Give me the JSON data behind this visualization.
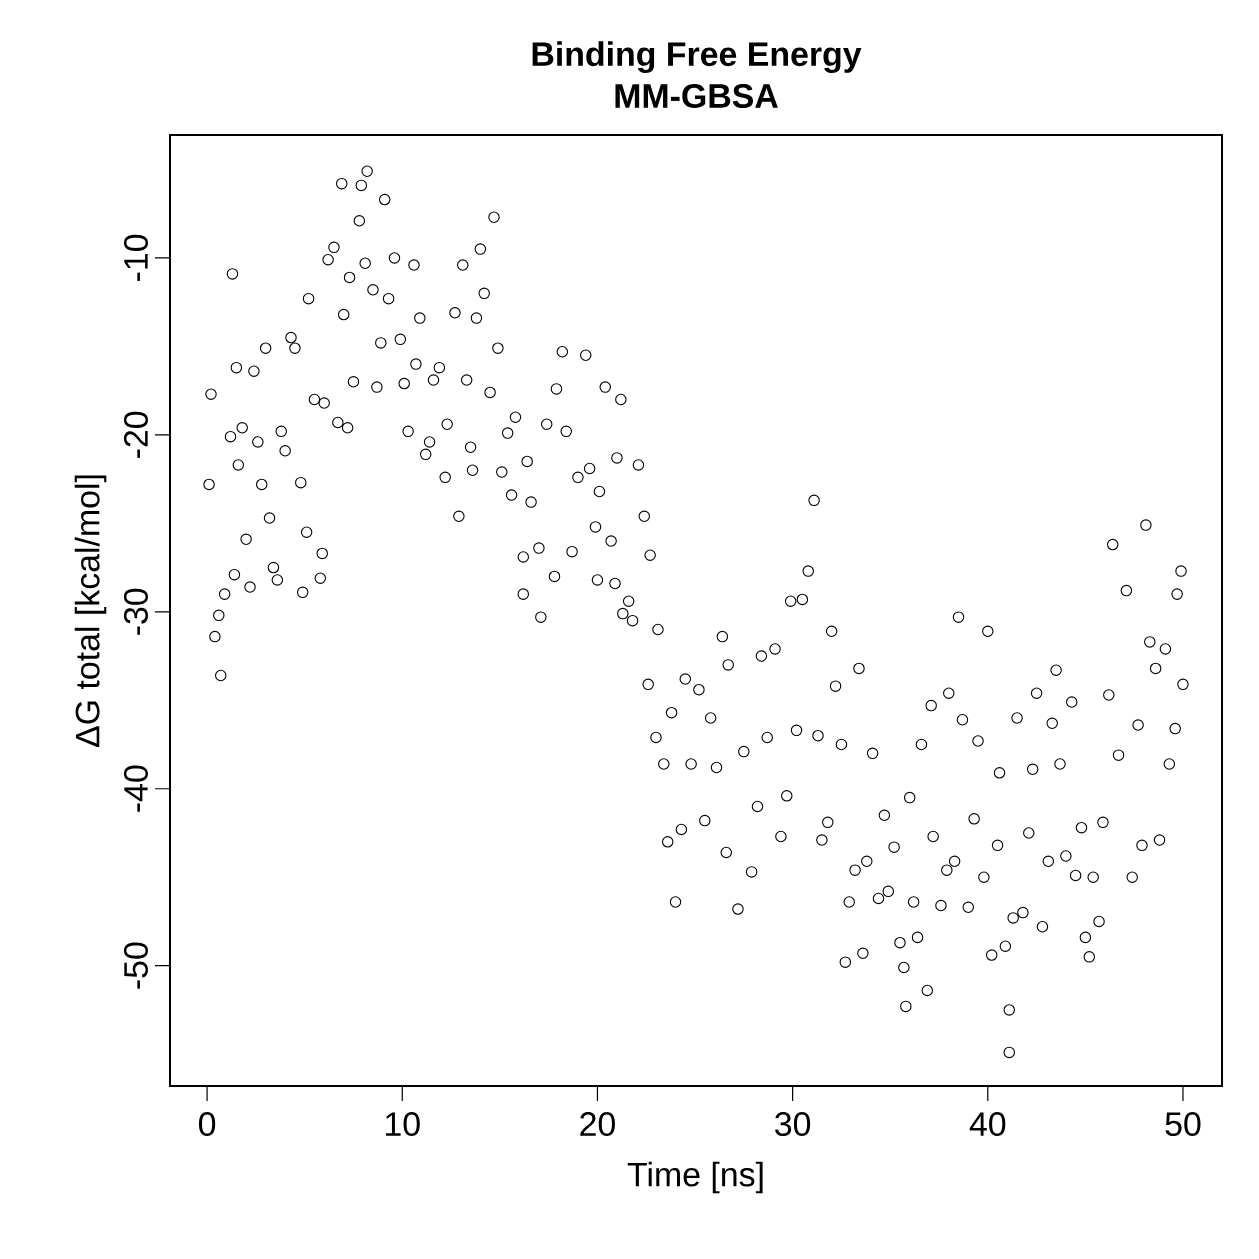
{
  "chart_data": {
    "type": "scatter",
    "title": "Binding Free Energy",
    "subtitle": "MM-GBSA",
    "xlabel": "Time [ns]",
    "ylabel": "ΔG total [kcal/mol]",
    "x": [
      0.1,
      0.2,
      0.4,
      0.7,
      0.6,
      0.9,
      1.2,
      1.3,
      1.5,
      1.6,
      1.4,
      1.8,
      2.0,
      2.2,
      2.4,
      2.6,
      2.8,
      3.0,
      3.2,
      3.4,
      3.6,
      3.8,
      4.0,
      4.3,
      4.5,
      4.8,
      4.9,
      5.1,
      5.2,
      5.5,
      5.8,
      5.9,
      6.0,
      6.2,
      6.5,
      6.7,
      6.9,
      7.0,
      7.2,
      7.3,
      7.5,
      7.8,
      7.9,
      8.2,
      8.1,
      8.5,
      8.7,
      8.9,
      9.1,
      9.3,
      9.6,
      9.9,
      10.1,
      10.3,
      10.6,
      10.7,
      10.9,
      11.2,
      11.4,
      11.6,
      11.9,
      12.2,
      12.3,
      12.7,
      12.9,
      13.1,
      13.3,
      13.5,
      13.6,
      13.8,
      14.0,
      14.2,
      14.5,
      14.7,
      14.9,
      15.1,
      15.4,
      15.6,
      15.8,
      16.2,
      16.2,
      16.4,
      16.6,
      17.0,
      17.1,
      17.4,
      17.8,
      17.9,
      18.2,
      18.4,
      18.7,
      19.0,
      19.4,
      19.6,
      19.9,
      20.0,
      20.1,
      20.4,
      20.7,
      20.9,
      21.0,
      21.2,
      21.3,
      21.6,
      21.8,
      22.1,
      22.4,
      22.6,
      22.7,
      23.0,
      23.1,
      23.4,
      23.6,
      23.8,
      24.0,
      24.3,
      24.5,
      24.8,
      25.2,
      25.5,
      25.8,
      26.1,
      26.4,
      26.6,
      26.7,
      27.2,
      27.5,
      27.9,
      28.2,
      28.4,
      28.7,
      29.1,
      29.4,
      29.7,
      29.9,
      30.2,
      30.5,
      30.8,
      31.1,
      31.3,
      31.5,
      31.8,
      32.0,
      32.2,
      32.5,
      32.7,
      32.9,
      33.2,
      33.4,
      33.6,
      33.8,
      34.1,
      34.4,
      34.7,
      34.9,
      35.2,
      35.5,
      35.7,
      35.8,
      36.0,
      36.2,
      36.4,
      36.6,
      36.9,
      37.1,
      37.2,
      37.6,
      37.9,
      38.0,
      38.3,
      38.5,
      38.7,
      39.0,
      39.3,
      39.5,
      39.8,
      40.0,
      40.2,
      40.5,
      40.6,
      40.9,
      41.1,
      41.1,
      41.3,
      41.5,
      41.8,
      42.1,
      42.3,
      42.5,
      42.8,
      43.1,
      43.3,
      43.5,
      43.7,
      44.0,
      44.3,
      44.5,
      44.8,
      45.0,
      45.2,
      45.4,
      45.7,
      45.9,
      46.2,
      46.4,
      46.7,
      47.1,
      47.4,
      47.7,
      47.9,
      48.1,
      48.3,
      48.6,
      48.8,
      49.1,
      49.3,
      49.6,
      49.7,
      49.9,
      50.0
    ],
    "values": [
      -22.8,
      -17.7,
      -31.4,
      -33.6,
      -30.2,
      -29.0,
      -20.1,
      -10.9,
      -16.2,
      -21.7,
      -27.9,
      -19.6,
      -25.9,
      -28.6,
      -16.4,
      -20.4,
      -22.8,
      -15.1,
      -24.7,
      -27.5,
      -28.2,
      -19.8,
      -20.9,
      -14.5,
      -15.1,
      -22.7,
      -28.9,
      -25.5,
      -12.3,
      -18.0,
      -28.1,
      -26.7,
      -18.2,
      -10.1,
      -9.4,
      -19.3,
      -5.8,
      -13.2,
      -19.6,
      -11.1,
      -17.0,
      -7.9,
      -5.9,
      -5.1,
      -10.3,
      -11.8,
      -17.3,
      -14.8,
      -6.7,
      -12.3,
      -10.0,
      -14.6,
      -17.1,
      -19.8,
      -10.4,
      -16.0,
      -13.4,
      -21.1,
      -20.4,
      -16.9,
      -16.2,
      -22.4,
      -19.4,
      -13.1,
      -24.6,
      -10.4,
      -16.9,
      -20.7,
      -22.0,
      -13.4,
      -9.5,
      -12.0,
      -17.6,
      -7.7,
      -15.1,
      -22.1,
      -19.9,
      -23.4,
      -19.0,
      -26.9,
      -29.0,
      -21.5,
      -23.8,
      -26.4,
      -30.3,
      -19.4,
      -28.0,
      -17.4,
      -15.3,
      -19.8,
      -26.6,
      -22.4,
      -15.5,
      -21.9,
      -25.2,
      -28.2,
      -23.2,
      -17.3,
      -26.0,
      -28.4,
      -21.3,
      -18.0,
      -30.1,
      -29.4,
      -30.5,
      -21.7,
      -24.6,
      -34.1,
      -26.8,
      -37.1,
      -31.0,
      -38.6,
      -43.0,
      -35.7,
      -46.4,
      -42.3,
      -33.8,
      -38.6,
      -34.4,
      -41.8,
      -36.0,
      -38.8,
      -31.4,
      -43.6,
      -33.0,
      -46.8,
      -37.9,
      -44.7,
      -41.0,
      -32.5,
      -37.1,
      -32.1,
      -42.7,
      -40.4,
      -29.4,
      -36.7,
      -29.3,
      -27.7,
      -23.7,
      -37.0,
      -42.9,
      -41.9,
      -31.1,
      -34.2,
      -37.5,
      -49.8,
      -46.4,
      -44.6,
      -33.2,
      -49.3,
      -44.1,
      -38.0,
      -46.2,
      -41.5,
      -45.8,
      -43.3,
      -48.7,
      -50.1,
      -52.3,
      -40.5,
      -46.4,
      -48.4,
      -37.5,
      -51.4,
      -35.3,
      -42.7,
      -46.6,
      -44.6,
      -34.6,
      -44.1,
      -30.3,
      -36.1,
      -46.7,
      -41.7,
      -37.3,
      -45.0,
      -31.1,
      -49.4,
      -43.2,
      -39.1,
      -48.9,
      -52.5,
      -54.9,
      -47.3,
      -36.0,
      -47.0,
      -42.5,
      -38.9,
      -34.6,
      -47.8,
      -44.1,
      -36.3,
      -33.3,
      -38.6,
      -43.8,
      -35.1,
      -44.9,
      -42.2,
      -48.4,
      -49.5,
      -45.0,
      -47.5,
      -41.9,
      -34.7,
      -26.2,
      -38.1,
      -28.8,
      -45.0,
      -36.4,
      -43.2,
      -25.1,
      -31.7,
      -33.2,
      -42.9,
      -32.1,
      -38.6,
      -36.6,
      -29.0,
      -27.7,
      -34.1
    ],
    "color": "#000000",
    "marker": "circle",
    "grid": false,
    "xlim": [
      -1.9,
      52.0
    ],
    "ylim": [
      -56.8,
      -3.05
    ],
    "xticks": [
      0,
      10,
      20,
      30,
      40,
      50
    ],
    "yticks": [
      -50,
      -40,
      -30,
      -20,
      -10
    ]
  }
}
